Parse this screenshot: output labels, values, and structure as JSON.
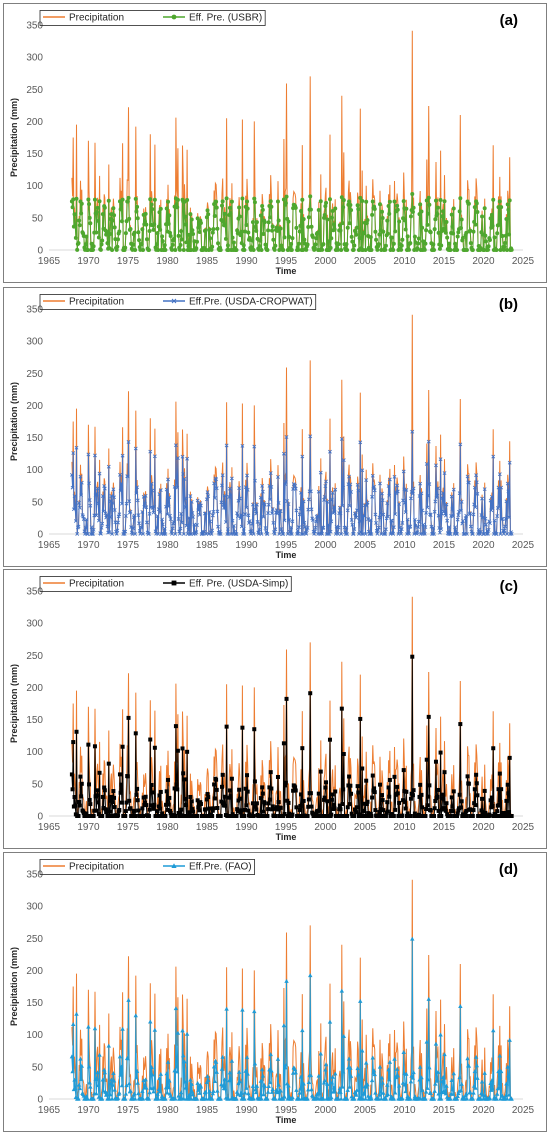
{
  "chart_data": [
    {
      "type": "line",
      "panel_label": "(a)",
      "xlabel": "Time",
      "ylabel": "Precipitation (mm)",
      "xlim": [
        1965,
        2025
      ],
      "ylim": [
        0,
        350
      ],
      "xticks": [
        1965,
        1970,
        1975,
        1980,
        1985,
        1990,
        1995,
        2000,
        2005,
        2010,
        2015,
        2020,
        2025
      ],
      "yticks": [
        0,
        50,
        100,
        150,
        200,
        250,
        300,
        350
      ],
      "legend_position": "top-left",
      "series": [
        {
          "name": "Precipitation",
          "color": "#ED7D31",
          "marker": "none"
        },
        {
          "name": "Eff. Pre. (USBR)",
          "color": "#4EA72E",
          "marker": "circle"
        }
      ],
      "peaks": [
        {
          "x": 1968.1,
          "y": 175
        },
        {
          "x": 1968.5,
          "y": 195
        },
        {
          "x": 1970.0,
          "y": 170
        },
        {
          "x": 1975.1,
          "y": 222
        },
        {
          "x": 1976.0,
          "y": 192
        },
        {
          "x": 1981.1,
          "y": 206
        },
        {
          "x": 1987.5,
          "y": 205
        },
        {
          "x": 1989.5,
          "y": 203
        },
        {
          "x": 1991.0,
          "y": 200
        },
        {
          "x": 1995.1,
          "y": 259
        },
        {
          "x": 1998.1,
          "y": 270
        },
        {
          "x": 2002.1,
          "y": 240
        },
        {
          "x": 2004.4,
          "y": 220
        },
        {
          "x": 2011.0,
          "y": 341
        },
        {
          "x": 2013.1,
          "y": 224
        },
        {
          "x": 2017.1,
          "y": 210
        },
        {
          "x": 2021.2,
          "y": 163
        }
      ]
    },
    {
      "type": "line",
      "panel_label": "(b)",
      "xlabel": "Time",
      "ylabel": "Precipitation (mm)",
      "xlim": [
        1965,
        2025
      ],
      "ylim": [
        0,
        350
      ],
      "xticks": [
        1965,
        1970,
        1975,
        1980,
        1985,
        1990,
        1995,
        2000,
        2005,
        2010,
        2015,
        2020,
        2025
      ],
      "yticks": [
        0,
        50,
        100,
        150,
        200,
        250,
        300,
        350
      ],
      "legend_position": "top-left",
      "series": [
        {
          "name": "Precipitation",
          "color": "#ED7D31",
          "marker": "none"
        },
        {
          "name": "Eff.Pre. (USDA-CROPWAT)",
          "color": "#4472C4",
          "marker": "x"
        }
      ]
    },
    {
      "type": "line",
      "panel_label": "(c)",
      "xlabel": "Time",
      "ylabel": "Precipitation (mm)",
      "xlim": [
        1965,
        2025
      ],
      "ylim": [
        0,
        350
      ],
      "xticks": [
        1965,
        1970,
        1975,
        1980,
        1985,
        1990,
        1995,
        2000,
        2005,
        2010,
        2015,
        2020,
        2025
      ],
      "yticks": [
        0,
        50,
        100,
        150,
        200,
        250,
        300,
        350
      ],
      "legend_position": "top-left",
      "series": [
        {
          "name": "Precipitation",
          "color": "#ED7D31",
          "marker": "none"
        },
        {
          "name": "Eff. Pre. (USDA-Simp)",
          "color": "#000000",
          "marker": "square"
        }
      ]
    },
    {
      "type": "line",
      "panel_label": "(d)",
      "xlabel": "Time",
      "ylabel": "Precipitation (mm)",
      "xlim": [
        1965,
        2025
      ],
      "ylim": [
        0,
        350
      ],
      "xticks": [
        1965,
        1970,
        1975,
        1980,
        1985,
        1990,
        1995,
        2000,
        2005,
        2010,
        2015,
        2020,
        2025
      ],
      "yticks": [
        0,
        50,
        100,
        150,
        200,
        250,
        300,
        350
      ],
      "legend_position": "top-left",
      "series": [
        {
          "name": "Precipitation",
          "color": "#ED7D31",
          "marker": "none"
        },
        {
          "name": "Eff.Pre. (FAO)",
          "color": "#1F9BD7",
          "marker": "triangle"
        }
      ]
    }
  ]
}
